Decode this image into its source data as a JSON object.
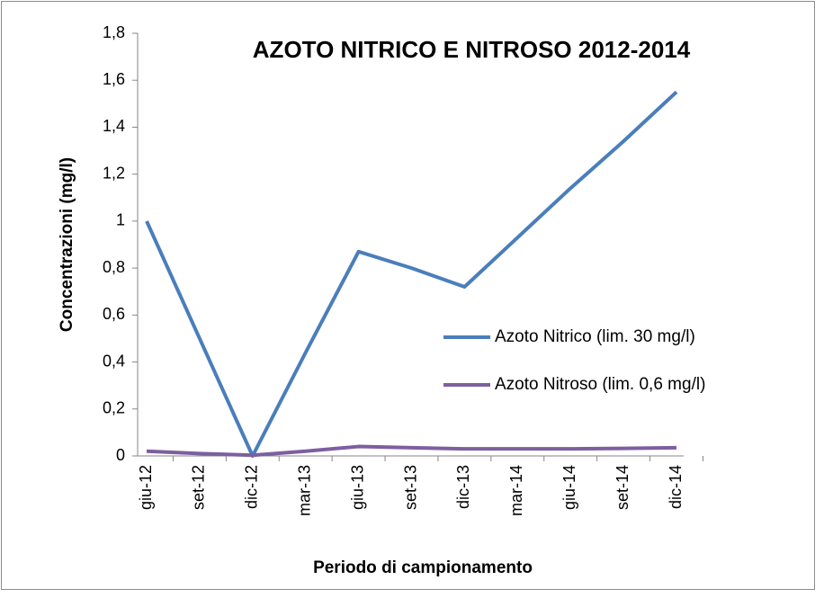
{
  "chart_data": {
    "type": "line",
    "title": "AZOTO NITRICO E NITROSO 2012-2014",
    "x_label": "Periodo di campionamento",
    "y_label": "Concentrazioni  (mg/l)",
    "categories": [
      "giu-12",
      "set-12",
      "dic-12",
      "mar-13",
      "giu-13",
      "set-13",
      "dic-13",
      "mar-14",
      "giu-14",
      "set-14",
      "dic-14"
    ],
    "series": [
      {
        "name": "Azoto Nitrico (lim. 30 mg/l)",
        "color": "#4a7ebb",
        "values": [
          1.0,
          0.5,
          0.0,
          0.44,
          0.87,
          0.8,
          0.72,
          0.93,
          1.14,
          1.34,
          1.55
        ]
      },
      {
        "name": "Azoto Nitroso (lim. 0,6 mg/l)",
        "color": "#7d5fa0",
        "values": [
          0.02,
          0.01,
          0.003,
          0.02,
          0.04,
          0.035,
          0.03,
          0.03,
          0.03,
          0.032,
          0.035
        ]
      }
    ],
    "ylim": [
      0,
      1.8
    ],
    "yticks": [
      0,
      {
        "value": 0.2,
        "label": "0,2"
      },
      {
        "value": 0.4,
        "label": "0,4"
      },
      {
        "value": 0.6,
        "label": "0,6"
      },
      {
        "value": 0.8,
        "label": "0,8"
      },
      1,
      {
        "value": 1.2,
        "label": "1,2"
      },
      {
        "value": 1.4,
        "label": "1,4"
      },
      {
        "value": 1.6,
        "label": "1,6"
      },
      {
        "value": 1.8,
        "label": "1,8"
      }
    ],
    "legend": "right",
    "grid": false
  }
}
